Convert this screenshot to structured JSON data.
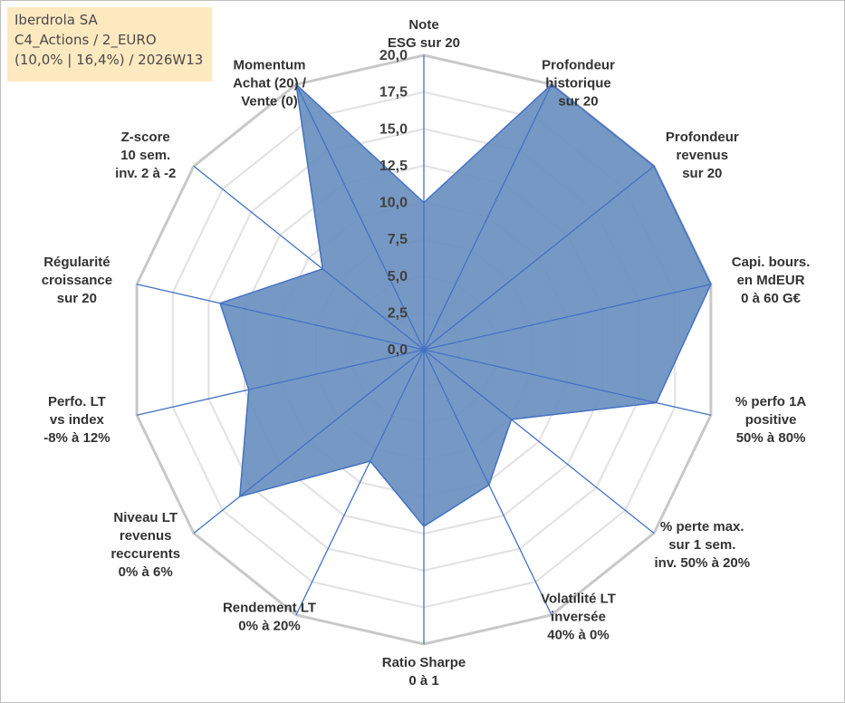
{
  "info": {
    "line1": "Iberdrola SA",
    "line2": "C4_Actions / 2_EURO",
    "line3": "(10,0% | 16,4%) / 2026W13"
  },
  "chart_data": {
    "type": "radar",
    "title": "",
    "rmin": 0,
    "rmax": 20,
    "ticks": [
      "0,0",
      "2,5",
      "5,0",
      "7,5",
      "10,0",
      "12,5",
      "15,0",
      "17,5",
      "20,0"
    ],
    "axes": [
      {
        "label": [
          "Note",
          "ESG sur 20"
        ],
        "value": 10
      },
      {
        "label": [
          "Profondeur",
          "historique",
          "sur 20"
        ],
        "value": 20
      },
      {
        "label": [
          "Profondeur",
          "revenus",
          "sur 20"
        ],
        "value": 20
      },
      {
        "label": [
          "Capi. bours.",
          "en MdEUR",
          "0 à 60 G€"
        ],
        "value": 20
      },
      {
        "label": [
          "% perfo 1A",
          "positive",
          "50% à 80%"
        ],
        "value": 16.2
      },
      {
        "label": [
          "% perte max.",
          "sur 1 sem.",
          "inv. 50% à 20%"
        ],
        "value": 7.6
      },
      {
        "label": [
          "Volatilité LT",
          "inversée",
          "40% à 0%"
        ],
        "value": 10.2
      },
      {
        "label": [
          "Ratio Sharpe",
          "0 à 1"
        ],
        "value": 12
      },
      {
        "label": [
          "Rendement LT",
          "0% à 20%"
        ],
        "value": 8.4
      },
      {
        "label": [
          "Niveau LT",
          "revenus",
          "reccurents",
          "0% à 6%"
        ],
        "value": 16
      },
      {
        "label": [
          "Perfo. LT",
          "vs index",
          "-8% à 12%"
        ],
        "value": 12.2
      },
      {
        "label": [
          "Régularité",
          "croissance",
          "sur 20"
        ],
        "value": 14.2
      },
      {
        "label": [
          "Z-score",
          "10 sem.",
          "inv. 2 à -2"
        ],
        "value": 8.8
      },
      {
        "label": [
          "Momentum",
          "Achat (20) /",
          "Vente (0)"
        ],
        "value": 20
      }
    ],
    "series": [
      {
        "name": "Iberdrola SA"
      }
    ],
    "colors": {
      "fill": "#6a8fbf",
      "line": "#4472c4",
      "grid_outer": "#c8c8c8",
      "grid_inner": "#e3e3e3"
    }
  }
}
